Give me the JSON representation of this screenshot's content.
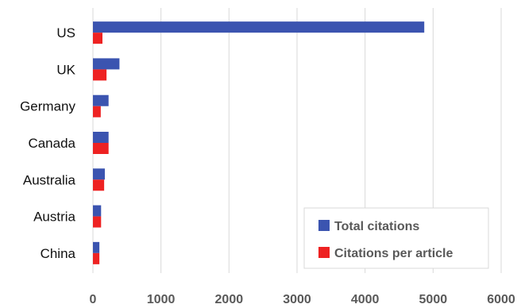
{
  "chart_data": {
    "type": "bar",
    "orientation": "horizontal",
    "categories": [
      "US",
      "UK",
      "Germany",
      "Canada",
      "Australia",
      "Austria",
      "China"
    ],
    "series": [
      {
        "name": "Total citations",
        "color": "#3b54b0",
        "values": [
          4870,
          390,
          230,
          230,
          175,
          120,
          95
        ]
      },
      {
        "name": "Citations per article",
        "color": "#ee2222",
        "values": [
          140,
          200,
          115,
          230,
          165,
          120,
          95
        ]
      }
    ],
    "xlim": [
      0,
      6000
    ],
    "xticks": [
      0,
      1000,
      2000,
      3000,
      4000,
      5000,
      6000
    ],
    "xtick_labels": [
      "0",
      "1000",
      "2000",
      "3000",
      "4000",
      "5000",
      "6000"
    ],
    "grid": true,
    "legend_position": "bottom-right",
    "title": "",
    "xlabel": "",
    "ylabel": ""
  }
}
